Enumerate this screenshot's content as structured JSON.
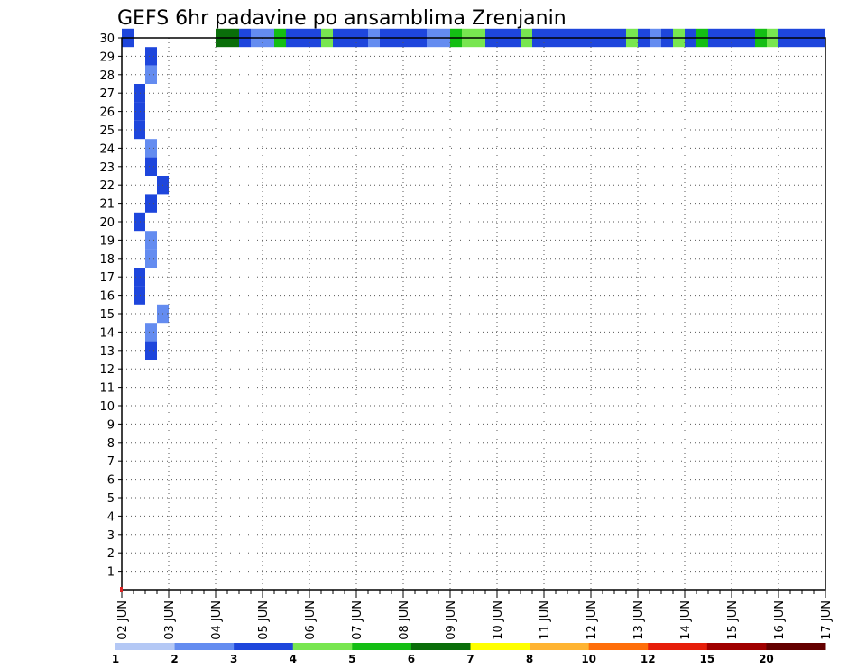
{
  "chart_data": {
    "type": "heatmap",
    "title": "GEFS 6hr padavine po ansamblima Zrenjanin",
    "x_tick_labels": [
      "02 JUN",
      "03 JUN",
      "04 JUN",
      "05 JUN",
      "06 JUN",
      "07 JUN",
      "08 JUN",
      "09 JUN",
      "10 JUN",
      "11 JUN",
      "12 JUN",
      "13 JUN",
      "14 JUN",
      "15 JUN",
      "16 JUN",
      "17 JUN"
    ],
    "x_steps_per_day": 4,
    "ylim": [
      0,
      30
    ],
    "y_tick_labels": [
      "1",
      "2",
      "3",
      "4",
      "5",
      "6",
      "7",
      "8",
      "9",
      "10",
      "11",
      "12",
      "13",
      "14",
      "15",
      "16",
      "17",
      "18",
      "19",
      "20",
      "21",
      "22",
      "23",
      "24",
      "25",
      "26",
      "27",
      "28",
      "29",
      "30"
    ],
    "grid": true,
    "colorbar": {
      "placement": "bottom",
      "levels": [
        "1",
        "2",
        "3",
        "4",
        "5",
        "6",
        "7",
        "8",
        "10",
        "12",
        "15",
        "20"
      ],
      "colors": [
        "#b4c8f5",
        "#648cf0",
        "#1e46dc",
        "#78e650",
        "#14be14",
        "#0a6e0a",
        "#ffff00",
        "#ffb432",
        "#ff6e0a",
        "#e61e0a",
        "#a00000",
        "#640000"
      ]
    },
    "cells": [
      [
        0,
        30,
        2
      ],
      [
        2,
        29,
        2
      ],
      [
        2,
        28,
        1
      ],
      [
        1,
        27,
        2
      ],
      [
        1,
        26,
        2
      ],
      [
        1,
        25,
        2
      ],
      [
        2,
        24,
        1
      ],
      [
        2,
        23,
        2
      ],
      [
        3,
        22,
        2
      ],
      [
        2,
        21,
        2
      ],
      [
        1,
        20,
        2
      ],
      [
        2,
        19,
        1
      ],
      [
        2,
        18,
        1
      ],
      [
        1,
        17,
        2
      ],
      [
        1,
        16,
        2
      ],
      [
        3,
        15,
        1
      ],
      [
        2,
        14,
        1
      ],
      [
        2,
        13,
        2
      ],
      [
        8,
        30,
        5
      ],
      [
        9,
        30,
        5
      ],
      [
        10,
        30,
        2
      ],
      [
        11,
        30,
        1
      ],
      [
        12,
        30,
        1
      ],
      [
        13,
        30,
        4
      ],
      [
        14,
        30,
        2
      ],
      [
        15,
        30,
        2
      ],
      [
        16,
        30,
        2
      ],
      [
        17,
        30,
        3
      ],
      [
        18,
        30,
        2
      ],
      [
        19,
        30,
        2
      ],
      [
        20,
        30,
        2
      ],
      [
        21,
        30,
        1
      ],
      [
        22,
        30,
        2
      ],
      [
        23,
        30,
        2
      ],
      [
        24,
        30,
        2
      ],
      [
        25,
        30,
        2
      ],
      [
        26,
        30,
        1
      ],
      [
        27,
        30,
        1
      ],
      [
        28,
        30,
        4
      ],
      [
        29,
        30,
        3
      ],
      [
        30,
        30,
        3
      ],
      [
        31,
        30,
        2
      ],
      [
        32,
        30,
        2
      ],
      [
        33,
        30,
        2
      ],
      [
        34,
        30,
        3
      ],
      [
        35,
        30,
        2
      ],
      [
        36,
        30,
        2
      ],
      [
        37,
        30,
        2
      ],
      [
        38,
        30,
        2
      ],
      [
        39,
        30,
        2
      ],
      [
        40,
        30,
        2
      ],
      [
        41,
        30,
        2
      ],
      [
        42,
        30,
        2
      ],
      [
        43,
        30,
        3
      ],
      [
        44,
        30,
        2
      ],
      [
        45,
        30,
        1
      ],
      [
        46,
        30,
        2
      ],
      [
        47,
        30,
        3
      ],
      [
        48,
        30,
        2
      ],
      [
        49,
        30,
        4
      ],
      [
        50,
        30,
        2
      ],
      [
        51,
        30,
        2
      ],
      [
        52,
        30,
        2
      ],
      [
        53,
        30,
        2
      ],
      [
        54,
        30,
        4
      ],
      [
        55,
        30,
        3
      ],
      [
        56,
        30,
        2
      ],
      [
        57,
        30,
        2
      ],
      [
        58,
        30,
        2
      ],
      [
        59,
        30,
        2
      ]
    ]
  }
}
